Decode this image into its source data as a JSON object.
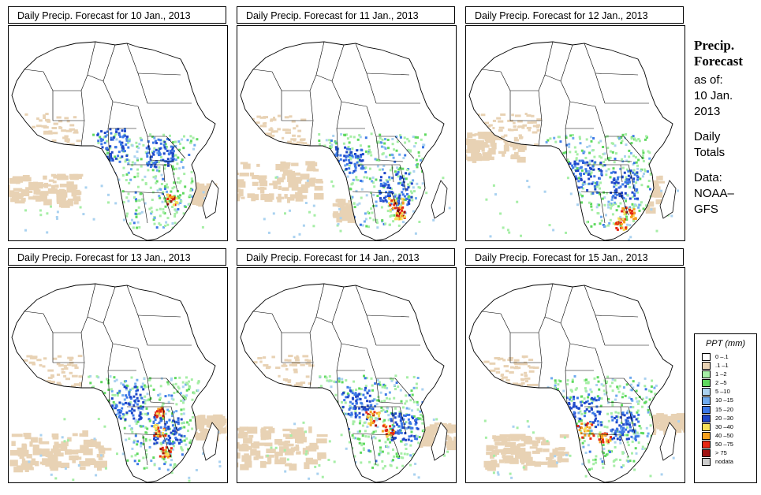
{
  "panels": [
    {
      "title": "Daily Precip. Forecast for  10 Jan., 2013"
    },
    {
      "title": "Daily Precip. Forecast for  11 Jan., 2013"
    },
    {
      "title": "Daily Precip. Forecast for  12 Jan., 2013"
    },
    {
      "title": "Daily Precip. Forecast for  13 Jan., 2013"
    },
    {
      "title": "Daily Precip. Forecast for  14 Jan., 2013"
    },
    {
      "title": "Daily Precip. Forecast for  15 Jan., 2013"
    }
  ],
  "side": {
    "line1": "Precip.",
    "line2": "Forecast",
    "line3": "as of:",
    "line4": "10 Jan.",
    "line5": "2013",
    "line6": "Daily",
    "line7": "Totals",
    "line8": "Data:",
    "line9": "NOAA–",
    "line10": "GFS"
  },
  "legend": {
    "title": "PPT (mm)",
    "items": [
      {
        "label": "0 –.1",
        "color": "#ffffff"
      },
      {
        "label": ".1 –1",
        "color": "#e8d2b4"
      },
      {
        "label": "1 –2",
        "color": "#a6eea6"
      },
      {
        "label": "2 –5",
        "color": "#5fd95f"
      },
      {
        "label": "5 –10",
        "color": "#aad2f0"
      },
      {
        "label": "10 –15",
        "color": "#6eaaee"
      },
      {
        "label": "15 –20",
        "color": "#3c78e6"
      },
      {
        "label": "20 –30",
        "color": "#1e46c8"
      },
      {
        "label": "30 –40",
        "color": "#f5e05a"
      },
      {
        "label": "40 –50",
        "color": "#f5a01e"
      },
      {
        "label": "50 –75",
        "color": "#e62814"
      },
      {
        "label": "> 75",
        "color": "#a01414"
      },
      {
        "label": "nodata",
        "color": "#cccccc"
      }
    ]
  }
}
